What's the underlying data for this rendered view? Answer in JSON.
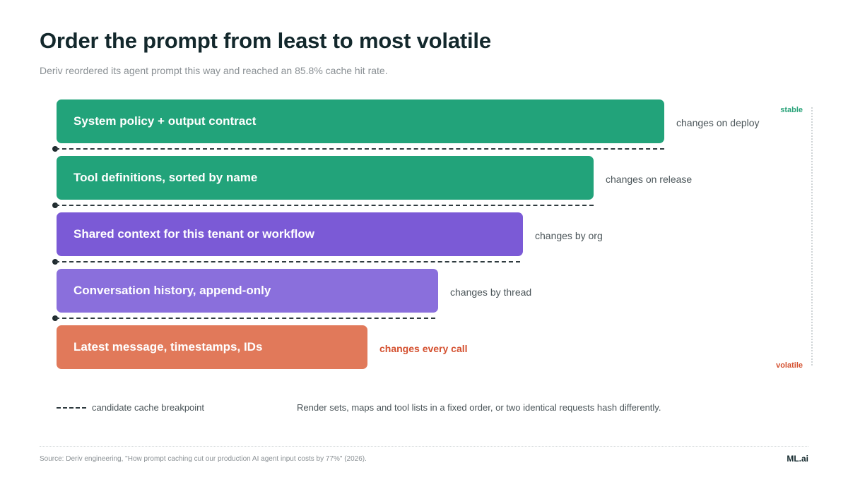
{
  "header": {
    "title": "Order the prompt from least to most volatile",
    "subtitle": "Deriv reordered its agent prompt this way and reached an 85.8% cache hit rate."
  },
  "axis": {
    "top_label": "stable",
    "bottom_label": "volatile"
  },
  "layers": [
    {
      "label": "System policy + output contract",
      "volatility": "changes on deploy",
      "color": "#22a37a"
    },
    {
      "label": "Tool definitions, sorted by name",
      "volatility": "changes on release",
      "color": "#22a37a"
    },
    {
      "label": "Shared context for this tenant or workflow",
      "volatility": "changes by org",
      "color": "#7b5ad6"
    },
    {
      "label": "Conversation history, append-only",
      "volatility": "changes by thread",
      "color": "#8a6fdc"
    },
    {
      "label": "Latest message, timestamps, IDs",
      "volatility": "changes every call",
      "color": "#e1795a"
    }
  ],
  "legend": {
    "breakpoint_label": "candidate cache breakpoint",
    "note": "Render sets, maps and tool lists in a fixed order, or two identical requests hash differently."
  },
  "footer": {
    "source": "Source: Deriv engineering, \"How prompt caching cut our production AI agent input costs by 77%\" (2026).",
    "brand": "ML.ai"
  }
}
